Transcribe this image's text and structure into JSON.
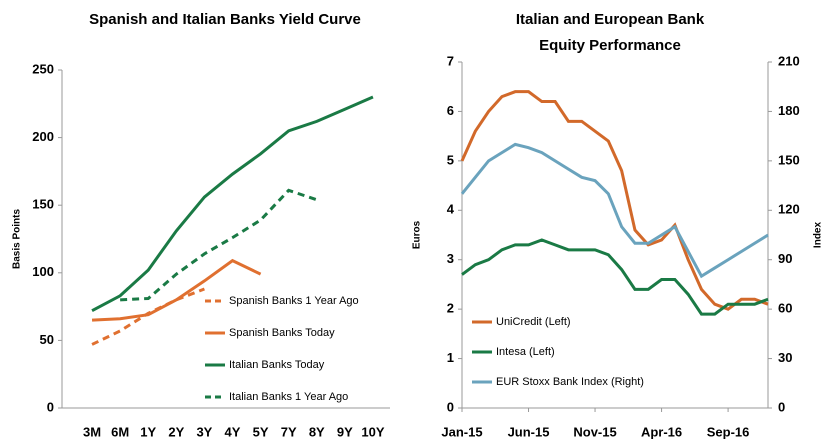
{
  "chart_data": [
    {
      "type": "line",
      "title": "Spanish and Italian Banks Yield Curve",
      "ylabel": "Basis Points",
      "categories": [
        "3M",
        "6M",
        "1Y",
        "2Y",
        "3Y",
        "4Y",
        "5Y",
        "7Y",
        "8Y",
        "9Y",
        "10Y"
      ],
      "ylim": [
        0,
        250
      ],
      "yticks": [
        0,
        50,
        100,
        150,
        200,
        250
      ],
      "legend": "lower right",
      "series": [
        {
          "name": "Spanish Banks 1 Year Ago",
          "color": "#e07030",
          "dashed": true,
          "values": [
            47,
            57,
            70,
            80,
            88,
            null,
            null,
            null,
            null,
            null,
            null
          ]
        },
        {
          "name": "Spanish Banks Today",
          "color": "#e07030",
          "dashed": false,
          "values": [
            65,
            66,
            69,
            80,
            94,
            109,
            99,
            null,
            null,
            null,
            null
          ]
        },
        {
          "name": "Italian Banks Today",
          "color": "#1a7a45",
          "dashed": false,
          "values": [
            72,
            83,
            102,
            131,
            156,
            173,
            188,
            205,
            212,
            221,
            230
          ]
        },
        {
          "name": "Italian Banks 1 Year Ago",
          "color": "#1a7a45",
          "dashed": true,
          "values": [
            null,
            80,
            81,
            99,
            114,
            126,
            139,
            161,
            154,
            null,
            null
          ]
        }
      ]
    },
    {
      "type": "line",
      "title": "Italian and European Bank Equity Performance",
      "ylabel": "Euros",
      "y2label": "Index",
      "x": [
        "Jan-15",
        null,
        null,
        null,
        null,
        "Jun-15",
        null,
        null,
        null,
        null,
        "Nov-15",
        null,
        null,
        null,
        null,
        "Apr-16",
        null,
        null,
        null,
        null,
        "Sep-16",
        null,
        null,
        null
      ],
      "ylim": [
        0,
        7
      ],
      "yticks": [
        0,
        1,
        2,
        3,
        4,
        5,
        6,
        7
      ],
      "y2lim": [
        0,
        210
      ],
      "y2ticks": [
        0,
        30,
        60,
        90,
        120,
        150,
        180,
        210
      ],
      "legend": "lower left",
      "series": [
        {
          "name": "UniCredit (Left)",
          "color": "#d2692a",
          "values": [
            5.0,
            5.6,
            6.0,
            6.3,
            6.4,
            6.4,
            6.2,
            6.2,
            5.8,
            5.8,
            5.6,
            5.4,
            4.8,
            3.6,
            3.3,
            3.4,
            3.7,
            3.0,
            2.4,
            2.1,
            2.0,
            2.2,
            2.2,
            2.1
          ]
        },
        {
          "name": "Intesa (Left)",
          "color": "#1a7a45",
          "values": [
            2.7,
            2.9,
            3.0,
            3.2,
            3.3,
            3.3,
            3.4,
            3.3,
            3.2,
            3.2,
            3.2,
            3.1,
            2.8,
            2.4,
            2.4,
            2.6,
            2.6,
            2.3,
            1.9,
            1.9,
            2.1,
            2.1,
            2.1,
            2.2
          ]
        },
        {
          "name": "EUR Stoxx Bank Index (Right)",
          "color": "#6aa3bd",
          "axis": "y2",
          "values": [
            130,
            140,
            150,
            155,
            160,
            158,
            155,
            150,
            145,
            140,
            138,
            130,
            110,
            100,
            100,
            105,
            110,
            95,
            80,
            85,
            90,
            95,
            100,
            105
          ]
        }
      ]
    }
  ]
}
